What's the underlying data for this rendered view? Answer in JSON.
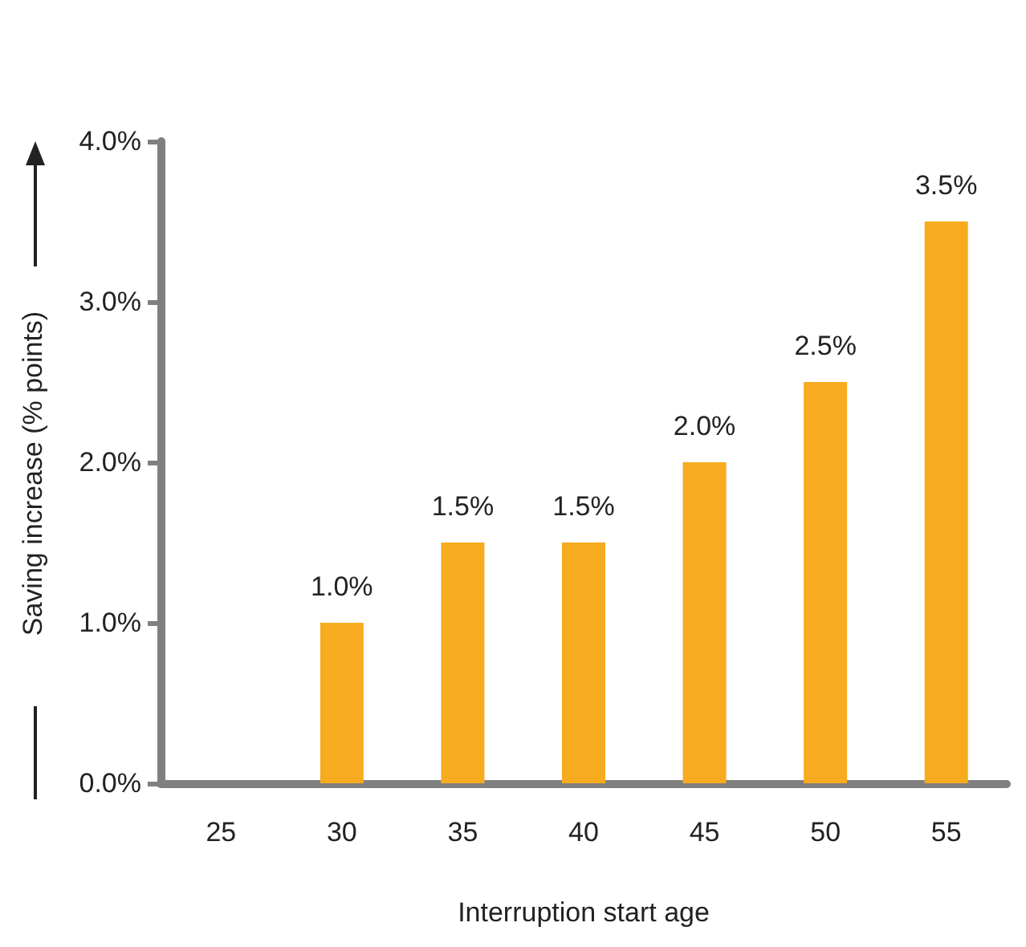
{
  "chart_data": {
    "type": "bar",
    "xlabel": "Interruption start age",
    "ylabel": "Saving increase (% points)",
    "categories": [
      "25",
      "30",
      "35",
      "40",
      "45",
      "50",
      "55"
    ],
    "values": [
      null,
      1.0,
      1.5,
      1.5,
      2.0,
      2.5,
      3.5
    ],
    "value_labels": [
      null,
      "1.0%",
      "1.5%",
      "1.5%",
      "2.0%",
      "2.5%",
      "3.5%"
    ],
    "color": "#f7ab1e",
    "ylim": [
      0,
      4
    ],
    "yticks": [
      {
        "value": 0,
        "label": "0.0%"
      },
      {
        "value": 1,
        "label": "1.0%"
      },
      {
        "value": 2,
        "label": "2.0%"
      },
      {
        "value": 3,
        "label": "3.0%"
      },
      {
        "value": 4,
        "label": "4.0%"
      }
    ],
    "grid": false
  }
}
